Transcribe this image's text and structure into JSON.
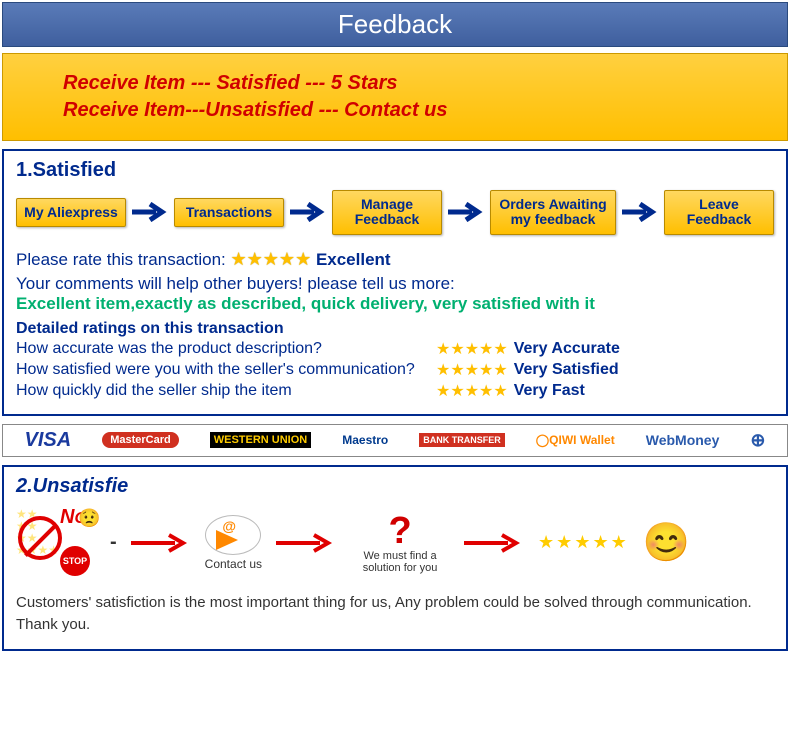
{
  "header": {
    "title": "Feedback"
  },
  "instructions": {
    "line1": "Receive  Item --- Satisfied  --- 5 Stars",
    "line2": "Receive  Item---Unsatisfied --- Contact us"
  },
  "satisfied": {
    "title": "1.Satisfied",
    "flow": [
      "My Aliexpress",
      "Transactions",
      "Manage Feedback",
      "Orders Awaiting my feedback",
      "Leave Feedback"
    ],
    "rate_label": "Please rate this transaction:",
    "rate_value": "Excellent",
    "comments_prompt": "Your comments will help other buyers! please tell us more:",
    "suggested_comment": "Excellent item,exactly as described, quick delivery, very satisfied with it",
    "details_title": "Detailed ratings on this transaction",
    "rows": [
      {
        "q": "How accurate was the product description?",
        "label": "Very Accurate"
      },
      {
        "q": "How satisfied were you with the seller's communication?",
        "label": "Very Satisfied"
      },
      {
        "q": "How quickly did the seller ship the item",
        "label": "Very Fast"
      }
    ]
  },
  "payments": {
    "visa": "VISA",
    "mastercard": "MasterCard",
    "wu": "WESTERN UNION",
    "maestro": "Maestro",
    "bank": "BANK TRANSFER",
    "qiwi": "QIWI Wallet",
    "webmoney": "WebMoney"
  },
  "unsatisfied": {
    "title": "2.Unsatisfie",
    "no_label": "N",
    "no_label2": "O",
    "stop": "STOP",
    "contact": "Contact us",
    "solution": "We must find a solution for you",
    "footer": "Customers' satisfiction is the most important thing for us, Any problem could be solved through communication. Thank you."
  },
  "colors": {
    "header_bg": "#3f5f9e",
    "accent_yellow": "#ffbf00",
    "red": "#d00000",
    "navy": "#002a8e",
    "green": "#00b070",
    "star": "#ffbf00"
  }
}
